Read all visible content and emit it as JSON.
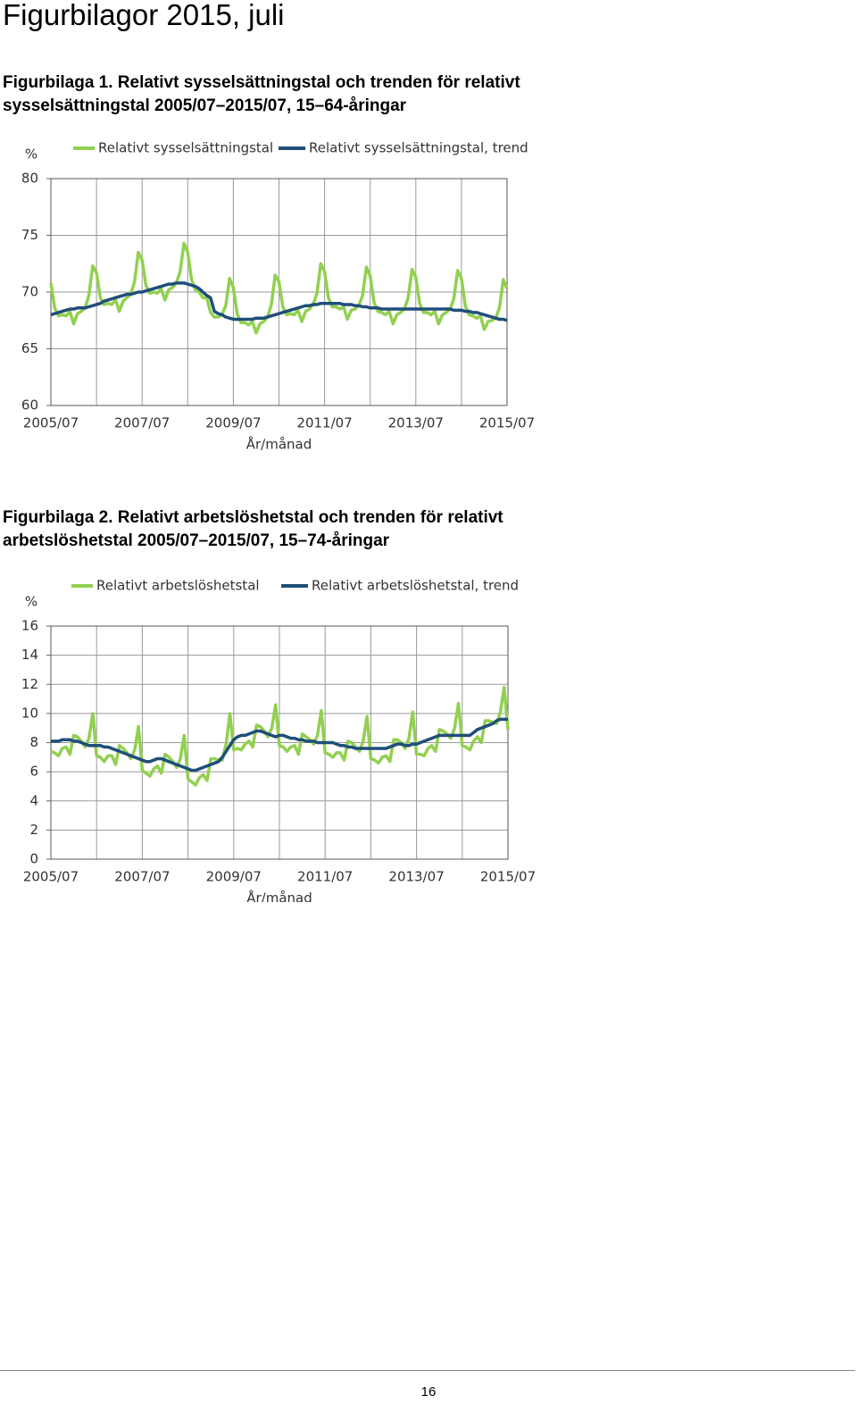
{
  "title": "Figurbilagor 2015, juli",
  "page_number": "16",
  "chart_data": [
    {
      "type": "line",
      "title": "Figurbilaga 1. Relativt sysselsättningstal och trenden för relativt sysselsättningstal 2005/07–2015/07, 15–64-åringar",
      "ylabel": "%",
      "xlabel": "År/månad",
      "ylim": [
        60,
        80
      ],
      "yticks": [
        60,
        65,
        70,
        75,
        80
      ],
      "grid": true,
      "categories": [
        "2005/07",
        null,
        null,
        null,
        null,
        null,
        null,
        null,
        null,
        null,
        null,
        null,
        null,
        null,
        null,
        null,
        null,
        null,
        null,
        null,
        null,
        null,
        null,
        null,
        "2007/07",
        null,
        null,
        null,
        null,
        null,
        null,
        null,
        null,
        null,
        null,
        null,
        null,
        null,
        null,
        null,
        null,
        null,
        null,
        null,
        null,
        null,
        null,
        null,
        "2009/07",
        null,
        null,
        null,
        null,
        null,
        null,
        null,
        null,
        null,
        null,
        null,
        null,
        null,
        null,
        null,
        null,
        null,
        null,
        null,
        null,
        null,
        null,
        null,
        "2011/07",
        null,
        null,
        null,
        null,
        null,
        null,
        null,
        null,
        null,
        null,
        null,
        null,
        null,
        null,
        null,
        null,
        null,
        null,
        null,
        null,
        null,
        null,
        null,
        "2013/07",
        null,
        null,
        null,
        null,
        null,
        null,
        null,
        null,
        null,
        null,
        null,
        null,
        null,
        null,
        null,
        null,
        null,
        null,
        null,
        null,
        null,
        null,
        null,
        "2015/07"
      ],
      "series": [
        {
          "name": "Relativt sysselsättningstal",
          "color": "#92d050",
          "values": [
            70.8,
            68.6,
            67.9,
            68.0,
            67.9,
            68.3,
            67.2,
            68.1,
            68.3,
            68.6,
            69.7,
            72.3,
            71.7,
            69.5,
            68.9,
            69.0,
            68.9,
            69.3,
            68.3,
            69.2,
            69.5,
            69.8,
            70.9,
            73.5,
            72.8,
            70.6,
            69.9,
            70.0,
            69.9,
            70.3,
            69.3,
            70.2,
            70.4,
            70.8,
            71.8,
            74.3,
            73.5,
            71.1,
            70.2,
            70.0,
            69.5,
            69.5,
            68.2,
            67.8,
            67.8,
            68.0,
            68.8,
            71.2,
            70.4,
            68.1,
            67.3,
            67.3,
            67.1,
            67.4,
            66.4,
            67.2,
            67.4,
            67.8,
            68.9,
            71.5,
            70.9,
            68.7,
            68.0,
            68.1,
            68.0,
            68.4,
            67.4,
            68.3,
            68.5,
            68.9,
            69.9,
            72.5,
            71.8,
            69.5,
            68.7,
            68.7,
            68.5,
            68.7,
            67.6,
            68.4,
            68.5,
            68.8,
            69.7,
            72.2,
            71.4,
            69.1,
            68.3,
            68.2,
            68.0,
            68.3,
            67.2,
            68.0,
            68.2,
            68.5,
            69.5,
            72.0,
            71.3,
            69.0,
            68.2,
            68.2,
            68.0,
            68.3,
            67.2,
            68.0,
            68.2,
            68.5,
            69.4,
            71.9,
            71.2,
            68.8,
            68.0,
            67.9,
            67.7,
            67.9,
            66.7,
            67.4,
            67.5,
            67.7,
            68.6,
            71.1,
            70.3
          ]
        },
        {
          "name": "Relativt sysselsättningstal, trend",
          "color": "#1f4e79",
          "values": [
            68.0,
            68.1,
            68.2,
            68.3,
            68.4,
            68.5,
            68.5,
            68.6,
            68.6,
            68.6,
            68.7,
            68.8,
            68.9,
            69.0,
            69.2,
            69.3,
            69.4,
            69.5,
            69.6,
            69.7,
            69.8,
            69.8,
            69.9,
            70.0,
            70.0,
            70.1,
            70.2,
            70.3,
            70.4,
            70.5,
            70.6,
            70.7,
            70.7,
            70.8,
            70.8,
            70.8,
            70.7,
            70.6,
            70.5,
            70.3,
            70.0,
            69.7,
            69.5,
            68.3,
            68.1,
            68.0,
            67.8,
            67.7,
            67.6,
            67.6,
            67.6,
            67.6,
            67.6,
            67.6,
            67.7,
            67.7,
            67.7,
            67.8,
            67.9,
            68.0,
            68.1,
            68.2,
            68.3,
            68.4,
            68.5,
            68.6,
            68.7,
            68.8,
            68.8,
            68.9,
            68.9,
            69.0,
            69.0,
            69.0,
            69.0,
            69.0,
            69.0,
            68.9,
            68.9,
            68.9,
            68.8,
            68.8,
            68.7,
            68.7,
            68.6,
            68.6,
            68.6,
            68.5,
            68.5,
            68.5,
            68.5,
            68.5,
            68.5,
            68.5,
            68.5,
            68.5,
            68.5,
            68.5,
            68.5,
            68.5,
            68.5,
            68.5,
            68.5,
            68.5,
            68.5,
            68.5,
            68.4,
            68.4,
            68.4,
            68.3,
            68.3,
            68.2,
            68.2,
            68.1,
            68.0,
            67.9,
            67.8,
            67.7,
            67.6,
            67.6,
            67.5
          ]
        }
      ]
    },
    {
      "type": "line",
      "title": "Figurbilaga 2. Relativt arbetslöshetstal och trenden för relativt arbetslöshetstal 2005/07–2015/07, 15–74-åringar",
      "ylabel": "%",
      "xlabel": "År/månad",
      "ylim": [
        0,
        16
      ],
      "yticks": [
        0,
        2,
        4,
        6,
        8,
        10,
        12,
        14,
        16
      ],
      "grid": true,
      "categories": [
        "2005/07",
        null,
        null,
        null,
        null,
        null,
        null,
        null,
        null,
        null,
        null,
        null,
        null,
        null,
        null,
        null,
        null,
        null,
        null,
        null,
        null,
        null,
        null,
        null,
        "2007/07",
        null,
        null,
        null,
        null,
        null,
        null,
        null,
        null,
        null,
        null,
        null,
        null,
        null,
        null,
        null,
        null,
        null,
        null,
        null,
        null,
        null,
        null,
        null,
        "2009/07",
        null,
        null,
        null,
        null,
        null,
        null,
        null,
        null,
        null,
        null,
        null,
        null,
        null,
        null,
        null,
        null,
        null,
        null,
        null,
        null,
        null,
        null,
        null,
        "2011/07",
        null,
        null,
        null,
        null,
        null,
        null,
        null,
        null,
        null,
        null,
        null,
        null,
        null,
        null,
        null,
        null,
        null,
        null,
        null,
        null,
        null,
        null,
        null,
        "2013/07",
        null,
        null,
        null,
        null,
        null,
        null,
        null,
        null,
        null,
        null,
        null,
        null,
        null,
        null,
        null,
        null,
        null,
        null,
        null,
        null,
        null,
        null,
        null,
        "2015/07"
      ],
      "series": [
        {
          "name": "Relativt arbetslöshetstal",
          "color": "#92d050",
          "values": [
            7.4,
            7.3,
            7.1,
            7.6,
            7.7,
            7.2,
            8.5,
            8.4,
            8.1,
            7.7,
            8.3,
            10.0,
            7.1,
            7.0,
            6.7,
            7.1,
            7.1,
            6.5,
            7.8,
            7.6,
            7.3,
            6.9,
            7.5,
            9.1,
            6.1,
            5.9,
            5.7,
            6.2,
            6.4,
            5.9,
            7.2,
            7.0,
            6.7,
            6.3,
            6.9,
            8.5,
            5.5,
            5.3,
            5.1,
            5.6,
            5.8,
            5.4,
            6.9,
            6.9,
            6.8,
            6.8,
            7.9,
            10.0,
            7.5,
            7.6,
            7.5,
            7.9,
            8.1,
            7.7,
            9.2,
            9.1,
            8.8,
            8.4,
            9.0,
            10.6,
            7.8,
            7.7,
            7.4,
            7.7,
            7.8,
            7.2,
            8.6,
            8.4,
            8.2,
            7.9,
            8.5,
            10.2,
            7.3,
            7.2,
            7.0,
            7.3,
            7.3,
            6.8,
            8.1,
            8.0,
            7.7,
            7.4,
            8.1,
            9.8,
            6.9,
            6.8,
            6.6,
            7.0,
            7.1,
            6.7,
            8.2,
            8.2,
            8.0,
            7.6,
            8.3,
            10.1,
            7.2,
            7.2,
            7.1,
            7.6,
            7.8,
            7.4,
            8.9,
            8.8,
            8.6,
            8.3,
            9.0,
            10.7,
            7.8,
            7.7,
            7.5,
            8.1,
            8.4,
            8.0,
            9.5,
            9.5,
            9.4,
            9.3,
            10.1,
            11.8,
            8.9
          ]
        },
        {
          "name": "Relativt arbetslöshetstal, trend",
          "color": "#1f4e79",
          "values": [
            8.1,
            8.1,
            8.1,
            8.2,
            8.2,
            8.2,
            8.1,
            8.1,
            8.0,
            7.9,
            7.8,
            7.8,
            7.8,
            7.8,
            7.7,
            7.7,
            7.6,
            7.5,
            7.4,
            7.3,
            7.2,
            7.1,
            7.0,
            6.9,
            6.8,
            6.7,
            6.7,
            6.8,
            6.9,
            6.9,
            6.8,
            6.7,
            6.6,
            6.5,
            6.4,
            6.3,
            6.2,
            6.1,
            6.1,
            6.2,
            6.3,
            6.4,
            6.5,
            6.6,
            6.7,
            7.0,
            7.4,
            7.8,
            8.2,
            8.4,
            8.5,
            8.5,
            8.6,
            8.7,
            8.8,
            8.8,
            8.7,
            8.6,
            8.5,
            8.4,
            8.5,
            8.5,
            8.4,
            8.3,
            8.3,
            8.2,
            8.2,
            8.1,
            8.1,
            8.1,
            8.0,
            8.0,
            8.0,
            8.0,
            8.0,
            7.9,
            7.8,
            7.8,
            7.7,
            7.7,
            7.6,
            7.6,
            7.6,
            7.6,
            7.6,
            7.6,
            7.6,
            7.6,
            7.6,
            7.7,
            7.8,
            7.9,
            7.9,
            7.8,
            7.8,
            7.9,
            7.9,
            8.0,
            8.1,
            8.2,
            8.3,
            8.4,
            8.5,
            8.5,
            8.5,
            8.5,
            8.5,
            8.5,
            8.5,
            8.5,
            8.5,
            8.7,
            8.9,
            9.0,
            9.1,
            9.2,
            9.3,
            9.5,
            9.6,
            9.6,
            9.6
          ]
        }
      ]
    }
  ]
}
